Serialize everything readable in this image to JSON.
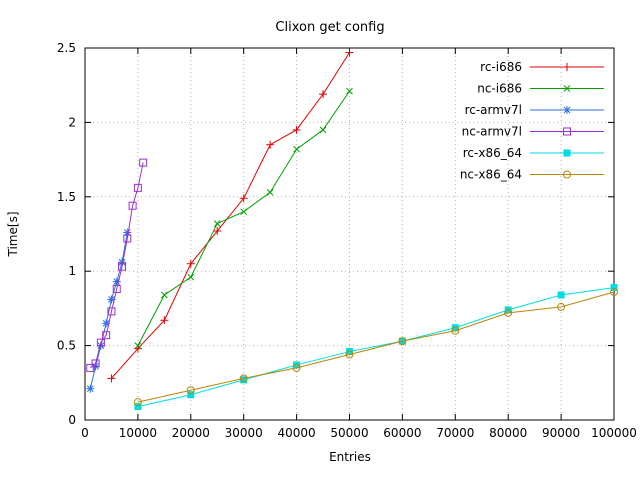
{
  "chart_data": {
    "type": "line",
    "title": "Clixon get config",
    "xlabel": "Entries",
    "ylabel": "Time[s]",
    "xlim": [
      0,
      100000
    ],
    "ylim": [
      0,
      2.5
    ],
    "xticks": [
      0,
      10000,
      20000,
      30000,
      40000,
      50000,
      60000,
      70000,
      80000,
      90000,
      100000
    ],
    "yticks": [
      0,
      0.5,
      1,
      1.5,
      2,
      2.5
    ],
    "grid": true,
    "grid_color": "#b5b5b5",
    "background": "#ffffff",
    "text_color": "#000000",
    "legend_position": "top-right-inside",
    "series": [
      {
        "name": "rc-i686",
        "color": "#e00000",
        "marker": "plus",
        "points": [
          [
            5000,
            0.28
          ],
          [
            10000,
            0.48
          ],
          [
            15000,
            0.67
          ],
          [
            20000,
            1.05
          ],
          [
            25000,
            1.27
          ],
          [
            30000,
            1.49
          ],
          [
            35000,
            1.85
          ],
          [
            40000,
            1.95
          ],
          [
            45000,
            2.19
          ],
          [
            50000,
            2.47
          ]
        ]
      },
      {
        "name": "nc-i686",
        "color": "#00a000",
        "marker": "cross",
        "points": [
          [
            10000,
            0.5
          ],
          [
            15000,
            0.84
          ],
          [
            20000,
            0.96
          ],
          [
            25000,
            1.32
          ],
          [
            30000,
            1.4
          ],
          [
            35000,
            1.53
          ],
          [
            40000,
            1.82
          ],
          [
            45000,
            1.95
          ],
          [
            50000,
            2.21
          ]
        ]
      },
      {
        "name": "rc-armv7l",
        "color": "#2a6fdf",
        "marker": "asterisk",
        "points": [
          [
            1000,
            0.21
          ],
          [
            2000,
            0.36
          ],
          [
            3000,
            0.5
          ],
          [
            4000,
            0.65
          ],
          [
            5000,
            0.81
          ],
          [
            6000,
            0.93
          ],
          [
            7000,
            1.06
          ],
          [
            8000,
            1.26
          ]
        ]
      },
      {
        "name": "nc-armv7l",
        "color": "#9932cc",
        "marker": "square-open",
        "points": [
          [
            1000,
            0.35
          ],
          [
            2000,
            0.38
          ],
          [
            3000,
            0.52
          ],
          [
            4000,
            0.57
          ],
          [
            5000,
            0.73
          ],
          [
            6000,
            0.88
          ],
          [
            7000,
            1.03
          ],
          [
            8000,
            1.22
          ],
          [
            9000,
            1.44
          ],
          [
            10000,
            1.56
          ],
          [
            11000,
            1.73
          ]
        ]
      },
      {
        "name": "rc-x86_64",
        "color": "#00dde0",
        "marker": "square-filled",
        "points": [
          [
            10000,
            0.09
          ],
          [
            20000,
            0.17
          ],
          [
            30000,
            0.27
          ],
          [
            40000,
            0.37
          ],
          [
            50000,
            0.46
          ],
          [
            60000,
            0.53
          ],
          [
            70000,
            0.62
          ],
          [
            80000,
            0.74
          ],
          [
            90000,
            0.84
          ],
          [
            100000,
            0.89
          ]
        ]
      },
      {
        "name": "nc-x86_64",
        "color": "#b8860b",
        "marker": "circle-open",
        "points": [
          [
            10000,
            0.12
          ],
          [
            20000,
            0.2
          ],
          [
            30000,
            0.28
          ],
          [
            40000,
            0.35
          ],
          [
            50000,
            0.44
          ],
          [
            60000,
            0.53
          ],
          [
            70000,
            0.6
          ],
          [
            80000,
            0.72
          ],
          [
            90000,
            0.76
          ],
          [
            100000,
            0.86
          ]
        ]
      }
    ]
  }
}
